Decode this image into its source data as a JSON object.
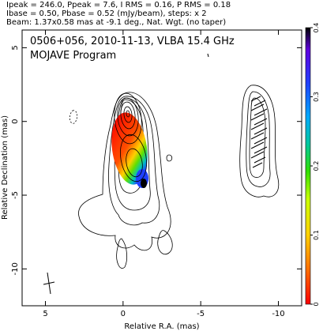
{
  "header": {
    "line1": "Ipeak = 246.0, Ppeak = 7.6, I RMS = 0.16, P RMS = 0.18",
    "line2": "Ibase = 0.50, Pbase = 0.52 (mJy/beam), steps: x 2",
    "line3": "Beam: 1.37x0.58 mas at -9.1 deg., Nat. Wgt. (no taper)"
  },
  "plot": {
    "title_line1": "0506+056, 2010-11-13, VLBA 15.4 GHz",
    "title_line2": "MOJAVE Program"
  },
  "chart_data": {
    "type": "heatmap",
    "title": "0506+056, 2010-11-13, VLBA 15.4 GHz",
    "xlabel": "Relative R.A. (mas)",
    "ylabel": "Relative Declination (mas)",
    "xlim": [
      6.5,
      -11.5
    ],
    "ylim": [
      -12.5,
      6.2
    ],
    "x_ticks": [
      5,
      0,
      -5,
      -10
    ],
    "x_tick_labels": [
      "5",
      "0",
      "-5",
      "-10"
    ],
    "y_ticks": [
      5,
      0,
      -5,
      -10
    ],
    "y_tick_labels": [
      "5",
      "0",
      "-5",
      "-10"
    ],
    "colorbar": {
      "range": [
        0,
        0.4
      ],
      "ticks": [
        0,
        0.1,
        0.2,
        0.3,
        0.4
      ],
      "tick_labels": [
        "0",
        "0.1",
        "0.2",
        "0.3",
        "0.4"
      ],
      "colors": [
        "#ff0000",
        "#ff6a00",
        "#ffd000",
        "#c8ff00",
        "#30e000",
        "#00c8a0",
        "#00a8ff",
        "#2040ff",
        "#6000e0",
        "#000000"
      ]
    },
    "total_intensity_peak_mJy_per_beam": 246.0,
    "polarized_peak_mJy_per_beam": 7.6,
    "contour_base_mJy_per_beam": 0.5,
    "contour_step_factor": 2,
    "beam": {
      "major_mas": 1.37,
      "minor_mas": 0.58,
      "pa_deg": -9.1
    },
    "polarized_knot": {
      "x_mas": 0.6,
      "y_mas": -2.0
    }
  }
}
